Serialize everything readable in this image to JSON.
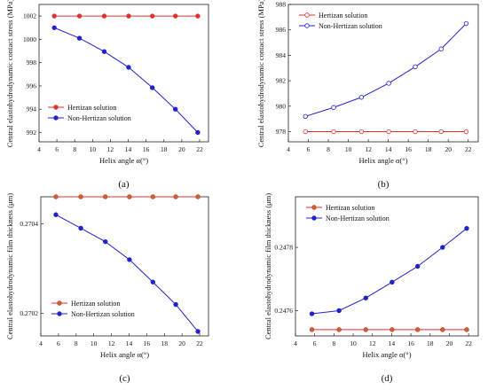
{
  "chart_data": [
    {
      "type": "line",
      "panel_label": "(a)",
      "xlabel": "Helix angle α(°)",
      "ylabel": "Central elastohydrodynamic contact stress (MPa)",
      "xlim": [
        4,
        23
      ],
      "ylim": [
        991.2,
        1003
      ],
      "xticks": [
        "4",
        "6",
        "8",
        "10",
        "12",
        "14",
        "16",
        "18",
        "20",
        "22"
      ],
      "yticks": [
        "992",
        "994",
        "996",
        "998",
        "1000",
        "1002"
      ],
      "legend_position": "middle-left",
      "series": [
        {
          "name": "Hertizan solution",
          "color": "#e03030",
          "marker_fill": "#e03030",
          "x": [
            5.71,
            8.53,
            11.31,
            14.04,
            16.7,
            19.29,
            21.8
          ],
          "y": [
            1002,
            1002,
            1002,
            1002,
            1002,
            1002,
            1002
          ]
        },
        {
          "name": "Non-Hertizan solution",
          "color": "#2222cc",
          "marker_fill": "#2222cc",
          "x": [
            5.71,
            8.53,
            11.31,
            14.04,
            16.7,
            19.29,
            21.8
          ],
          "y": [
            1001.0,
            1000.1,
            998.95,
            997.6,
            995.85,
            994.0,
            992.0
          ]
        }
      ]
    },
    {
      "type": "line",
      "panel_label": "(b)",
      "xlabel": "Helix angle α(°)",
      "ylabel": "Central elastohydrodynamic contact stress (MPa)",
      "xlim": [
        4,
        23
      ],
      "ylim": [
        977.2,
        988
      ],
      "xticks": [
        "4",
        "6",
        "8",
        "10",
        "12",
        "14",
        "16",
        "18",
        "20",
        "22"
      ],
      "yticks": [
        "978",
        "980",
        "982",
        "984",
        "986",
        "988"
      ],
      "legend_position": "top-left",
      "series": [
        {
          "name": "Hertizan solution",
          "color": "#e03030",
          "marker_fill": "#ffffff",
          "x": [
            5.71,
            8.53,
            11.31,
            14.04,
            16.7,
            19.29,
            21.8
          ],
          "y": [
            978,
            978,
            978,
            978,
            978,
            978,
            978
          ]
        },
        {
          "name": "Non-Hertizan solution",
          "color": "#2222cc",
          "marker_fill": "#ffffff",
          "x": [
            5.71,
            8.53,
            11.31,
            14.04,
            16.7,
            19.29,
            21.8
          ],
          "y": [
            979.2,
            979.9,
            980.7,
            981.8,
            983.1,
            984.5,
            986.5
          ]
        }
      ]
    },
    {
      "type": "line",
      "panel_label": "(c)",
      "xlabel": "Helix angle α(°)",
      "ylabel": "Central elastohydrodynamic film thickness (μm)",
      "xlim": [
        4,
        23
      ],
      "ylim": [
        0.27015,
        0.27046
      ],
      "xticks": [
        "4",
        "6",
        "8",
        "10",
        "12",
        "14",
        "16",
        "18",
        "20",
        "22"
      ],
      "yticks": [
        "0.2702",
        "0.2704"
      ],
      "legend_position": "bottom-left",
      "series": [
        {
          "name": "Hertizan solution",
          "color": "#e03030",
          "marker_fill": "#b87030",
          "x": [
            5.71,
            8.53,
            11.31,
            14.04,
            16.7,
            19.29,
            21.8
          ],
          "y": [
            0.27046,
            0.27046,
            0.27046,
            0.27046,
            0.27046,
            0.27046,
            0.27046
          ]
        },
        {
          "name": "Non-Hertizan solution",
          "color": "#2222cc",
          "marker_fill": "#2222cc",
          "x": [
            5.71,
            8.53,
            11.31,
            14.04,
            16.7,
            19.29,
            21.8
          ],
          "y": [
            0.27042,
            0.27039,
            0.27036,
            0.27032,
            0.27027,
            0.27022,
            0.27016
          ]
        }
      ]
    },
    {
      "type": "line",
      "panel_label": "(d)",
      "xlabel": "Helix angle α(°)",
      "ylabel": "Central elastohydrodynamic film thickness (μm)",
      "xlim": [
        4,
        23
      ],
      "ylim": [
        0.24752,
        0.24796
      ],
      "xticks": [
        "4",
        "6",
        "8",
        "10",
        "12",
        "14",
        "16",
        "18",
        "20",
        "22"
      ],
      "yticks": [
        "0.2476",
        "0.2478"
      ],
      "legend_position": "top-left",
      "series": [
        {
          "name": "Hertizan solution",
          "color": "#e03030",
          "marker_fill": "#b87030",
          "x": [
            5.71,
            8.53,
            11.31,
            14.04,
            16.7,
            19.29,
            21.8
          ],
          "y": [
            0.24754,
            0.24754,
            0.24754,
            0.24754,
            0.24754,
            0.24754,
            0.24754
          ]
        },
        {
          "name": "Non-Hertizan solution",
          "color": "#2222cc",
          "marker_fill": "#2222cc",
          "x": [
            5.71,
            8.53,
            11.31,
            14.04,
            16.7,
            19.29,
            21.8
          ],
          "y": [
            0.24759,
            0.2476,
            0.24764,
            0.24769,
            0.24774,
            0.2478,
            0.24786
          ]
        }
      ]
    }
  ]
}
